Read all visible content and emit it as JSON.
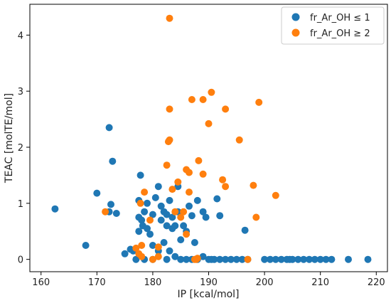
{
  "chart_data": {
    "type": "scatter",
    "title": "",
    "xlabel": "IP [kcal/mol]",
    "ylabel": "TEAC [molTE/mol]",
    "xlim": [
      158,
      222
    ],
    "ylim": [
      -0.22,
      4.55
    ],
    "xticks": [
      "160",
      "170",
      "180",
      "190",
      "200",
      "210",
      "220"
    ],
    "yticks": [
      "0",
      "1",
      "2",
      "3",
      "4"
    ],
    "grid": false,
    "legend_position": "top-right",
    "series": [
      {
        "name": "fr_Ar_OH ≤ 1",
        "color": "#1f77b4",
        "points": [
          [
            162.5,
            0.9
          ],
          [
            168,
            0.25
          ],
          [
            170,
            1.18
          ],
          [
            172.2,
            2.35
          ],
          [
            172.5,
            0.98
          ],
          [
            172.8,
            1.75
          ],
          [
            172.2,
            0.85
          ],
          [
            173.5,
            0.82
          ],
          [
            176,
            0.18
          ],
          [
            177,
            0.0
          ],
          [
            177.5,
            0.75
          ],
          [
            177.5,
            1.05
          ],
          [
            177.8,
            1.5
          ],
          [
            178,
            0.7
          ],
          [
            177.5,
            0.5
          ],
          [
            178.2,
            0.6
          ],
          [
            178.5,
            0.85
          ],
          [
            179,
            1.0
          ],
          [
            179,
            0.55
          ],
          [
            179.5,
            0.45
          ],
          [
            180,
            0.8
          ],
          [
            180.5,
            1.1
          ],
          [
            181,
            1.3
          ],
          [
            181.5,
            0.95
          ],
          [
            181.5,
            0.7
          ],
          [
            182,
            0.85
          ],
          [
            182.5,
            0.6
          ],
          [
            182.5,
            0.8
          ],
          [
            183,
            1.05
          ],
          [
            183.5,
            0.55
          ],
          [
            183.5,
            0.75
          ],
          [
            184,
            0.6
          ],
          [
            184.5,
            0.85
          ],
          [
            184.5,
            1.3
          ],
          [
            185,
            0.35
          ],
          [
            185.5,
            0.6
          ],
          [
            186,
            0.5
          ],
          [
            186.5,
            0.95
          ],
          [
            187,
            0.78
          ],
          [
            187.5,
            0.3
          ],
          [
            188,
            1.05
          ],
          [
            189,
            0.85
          ],
          [
            189.5,
            0.75
          ],
          [
            191.5,
            1.08
          ],
          [
            192,
            0.78
          ],
          [
            196.5,
            0.52
          ],
          [
            180,
            0.25
          ],
          [
            181,
            0.15
          ],
          [
            182,
            0.3
          ],
          [
            183,
            0.15
          ],
          [
            184,
            0.05
          ],
          [
            185,
            0.0
          ],
          [
            186,
            0.0
          ],
          [
            187,
            0.0
          ],
          [
            188,
            0.0
          ],
          [
            189,
            0.05
          ],
          [
            190,
            0.0
          ],
          [
            191,
            0.0
          ],
          [
            192,
            0.0
          ],
          [
            193,
            0.0
          ],
          [
            194,
            0.0
          ],
          [
            195,
            0.0
          ],
          [
            196,
            0.0
          ],
          [
            197,
            0.0
          ],
          [
            200,
            0.0
          ],
          [
            201,
            0.0
          ],
          [
            202,
            0.0
          ],
          [
            203,
            0.0
          ],
          [
            204,
            0.0
          ],
          [
            205,
            0.0
          ],
          [
            206,
            0.0
          ],
          [
            207,
            0.0
          ],
          [
            208,
            0.0
          ],
          [
            210,
            0.0
          ],
          [
            211,
            0.0
          ],
          [
            212,
            0.0
          ],
          [
            215,
            0.0
          ],
          [
            218.5,
            0.0
          ],
          [
            175,
            0.1
          ],
          [
            176.5,
            0.15
          ],
          [
            178.5,
            0.0
          ],
          [
            180,
            0.0
          ],
          [
            182.5,
            0.0
          ],
          [
            190.5,
            0.0
          ],
          [
            204.5,
            0.0
          ],
          [
            209,
            0.0
          ]
        ]
      },
      {
        "name": "fr_Ar_OH ≥ 2",
        "color": "#ff7f0e",
        "points": [
          [
            171.5,
            0.85
          ],
          [
            177,
            0.2
          ],
          [
            177.5,
            0.1
          ],
          [
            177.8,
            1.0
          ],
          [
            178,
            0.25
          ],
          [
            178.5,
            1.2
          ],
          [
            179.5,
            0.7
          ],
          [
            181,
            0.05
          ],
          [
            181,
            0.22
          ],
          [
            182.5,
            1.68
          ],
          [
            182.8,
            2.1
          ],
          [
            183,
            2.13
          ],
          [
            183,
            2.68
          ],
          [
            183,
            4.3
          ],
          [
            183.5,
            1.25
          ],
          [
            184,
            0.85
          ],
          [
            184.5,
            1.38
          ],
          [
            185,
            0.75
          ],
          [
            185.5,
            0.85
          ],
          [
            186,
            1.6
          ],
          [
            186.5,
            1.55
          ],
          [
            186,
            0.45
          ],
          [
            186.5,
            1.2
          ],
          [
            187,
            2.85
          ],
          [
            187.5,
            0.0
          ],
          [
            188,
            0.02
          ],
          [
            188.2,
            1.76
          ],
          [
            189,
            2.85
          ],
          [
            189,
            1.52
          ],
          [
            190,
            2.42
          ],
          [
            190.5,
            2.98
          ],
          [
            192.5,
            1.42
          ],
          [
            193,
            1.3
          ],
          [
            193,
            2.68
          ],
          [
            195.5,
            2.13
          ],
          [
            198,
            1.32
          ],
          [
            198.5,
            0.75
          ],
          [
            199,
            2.8
          ],
          [
            202,
            1.14
          ],
          [
            197,
            0.0
          ],
          [
            187.8,
            0.0
          ],
          [
            180,
            0.0
          ],
          [
            178,
            0.05
          ]
        ]
      }
    ]
  }
}
